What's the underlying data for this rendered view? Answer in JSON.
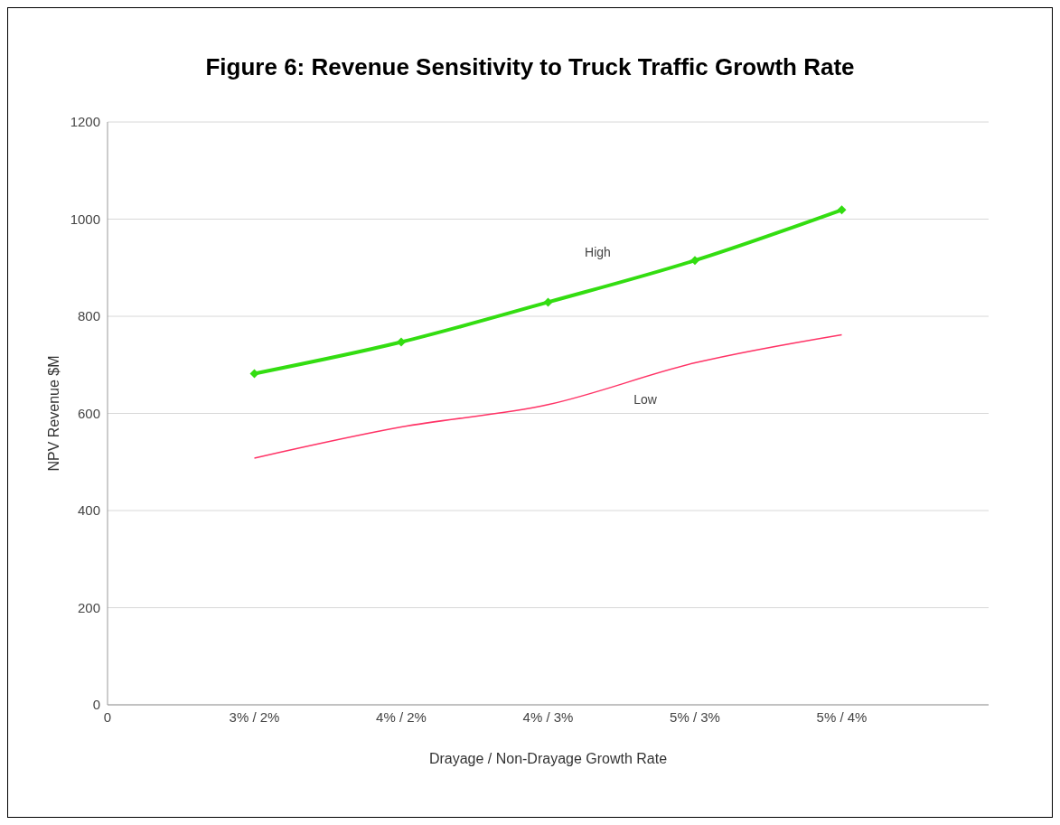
{
  "chart_data": {
    "type": "line",
    "title": "Figure 6: Revenue Sensitivity to Truck Traffic Growth Rate",
    "xlabel": "Drayage / Non-Drayage Growth Rate",
    "ylabel": "NPV Revenue $M",
    "categories": [
      "0",
      "3% / 2%",
      "4% / 2%",
      "4% / 3%",
      "5% / 3%",
      "5% / 4%",
      null
    ],
    "series": [
      {
        "name": "High",
        "color": "#33dd11",
        "marker": "diamond",
        "values": [
          null,
          682,
          747,
          829,
          915,
          1019,
          null
        ]
      },
      {
        "name": "Low",
        "color": "#ff3366",
        "marker": "none",
        "values": [
          null,
          508,
          572,
          618,
          704,
          762,
          null
        ]
      }
    ],
    "ylim": [
      0,
      1200
    ],
    "yticks": [
      0,
      200,
      400,
      600,
      800,
      1000,
      1200
    ],
    "grid": "y",
    "legend": false
  }
}
